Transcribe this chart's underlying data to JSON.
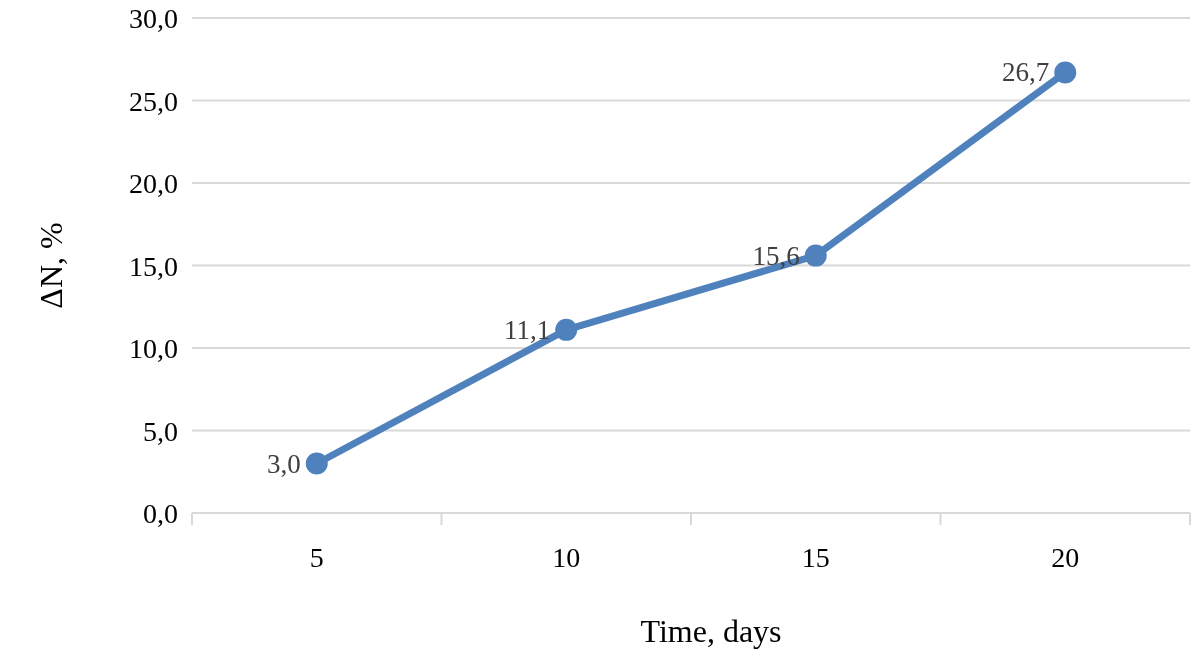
{
  "chart_data": {
    "type": "line",
    "xlabel": "Time, days",
    "ylabel": "ΔN, %",
    "categories": [
      "5",
      "10",
      "15",
      "20"
    ],
    "series": [
      {
        "color": "#4f81bd",
        "values": [
          3.0,
          11.1,
          15.6,
          26.7
        ],
        "value_labels": [
          "3,0",
          "11,1",
          "15,6",
          "26,7"
        ]
      }
    ],
    "ylim": [
      0,
      30
    ],
    "yticks": [
      {
        "value": 0,
        "label": "0,0"
      },
      {
        "value": 5,
        "label": "5,0"
      },
      {
        "value": 10,
        "label": "10,0"
      },
      {
        "value": 15,
        "label": "15,0"
      },
      {
        "value": 20,
        "label": "20,0"
      },
      {
        "value": 25,
        "label": "25,0"
      },
      {
        "value": 30,
        "label": "30,0"
      }
    ],
    "grid": "y",
    "marker": "circle",
    "line_style": "solid"
  }
}
